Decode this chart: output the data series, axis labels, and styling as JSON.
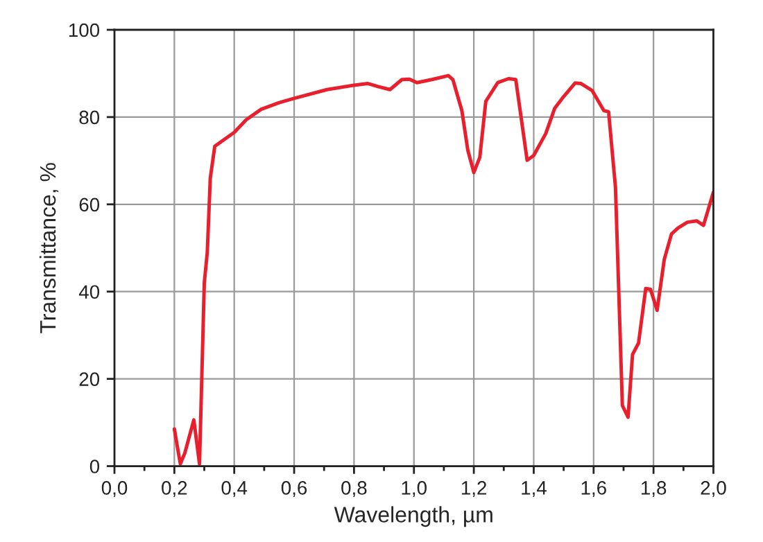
{
  "chart_data": {
    "type": "line",
    "xlabel": "Wavelength, µm",
    "ylabel": "Transmittance, %",
    "xlim": [
      0.0,
      2.0
    ],
    "ylim": [
      0,
      100
    ],
    "xticks": [
      {
        "value": 0.0,
        "label": "0,0"
      },
      {
        "value": 0.1,
        "label": null
      },
      {
        "value": 0.2,
        "label": "0,2"
      },
      {
        "value": 0.3,
        "label": null
      },
      {
        "value": 0.4,
        "label": "0,4"
      },
      {
        "value": 0.5,
        "label": null
      },
      {
        "value": 0.6,
        "label": "0,6"
      },
      {
        "value": 0.7,
        "label": null
      },
      {
        "value": 0.8,
        "label": "0,8"
      },
      {
        "value": 0.9,
        "label": null
      },
      {
        "value": 1.0,
        "label": "1,0"
      },
      {
        "value": 1.1,
        "label": null
      },
      {
        "value": 1.2,
        "label": "1,2"
      },
      {
        "value": 1.3,
        "label": null
      },
      {
        "value": 1.4,
        "label": "1,4"
      },
      {
        "value": 1.5,
        "label": null
      },
      {
        "value": 1.6,
        "label": "1,6"
      },
      {
        "value": 1.7,
        "label": null
      },
      {
        "value": 1.8,
        "label": "1,8"
      },
      {
        "value": 1.9,
        "label": null
      },
      {
        "value": 2.0,
        "label": "2,0"
      }
    ],
    "yticks": [
      0,
      20,
      40,
      60,
      80,
      100
    ],
    "grid": true,
    "legend": false,
    "marker": "none",
    "line_style": "solid",
    "series": [
      {
        "color": "#e8202e",
        "x": [
          0.2,
          0.22,
          0.235,
          0.265,
          0.284,
          0.3,
          0.31,
          0.32,
          0.335,
          0.4,
          0.44,
          0.49,
          0.55,
          0.6,
          0.71,
          0.8,
          0.845,
          0.88,
          0.92,
          0.96,
          0.985,
          1.01,
          1.06,
          1.115,
          1.13,
          1.16,
          1.18,
          1.2,
          1.22,
          1.24,
          1.28,
          1.316,
          1.34,
          1.358,
          1.378,
          1.4,
          1.44,
          1.47,
          1.5,
          1.538,
          1.557,
          1.595,
          1.634,
          1.65,
          1.673,
          1.696,
          1.715,
          1.73,
          1.75,
          1.774,
          1.79,
          1.812,
          1.836,
          1.86,
          1.882,
          1.913,
          1.944,
          1.967,
          2.0
        ],
        "values": [
          8.5,
          0.5,
          3,
          10.6,
          0.5,
          42,
          49,
          66,
          73.3,
          76.5,
          79.4,
          81.8,
          83.3,
          84.3,
          86.3,
          87.3,
          87.7,
          87.0,
          86.3,
          88.6,
          88.7,
          87.9,
          88.6,
          89.5,
          88.6,
          81.5,
          72.4,
          67.3,
          70.8,
          83.6,
          87.9,
          88.8,
          88.6,
          79.9,
          70.1,
          71.2,
          76.2,
          82.0,
          84.7,
          87.8,
          87.7,
          86.1,
          81.5,
          81.2,
          63.9,
          13.9,
          11.2,
          25.6,
          28.2,
          40.7,
          40.5,
          35.7,
          47.4,
          53.2,
          54.6,
          55.9,
          56.2,
          55.2,
          62.8
        ]
      }
    ]
  }
}
